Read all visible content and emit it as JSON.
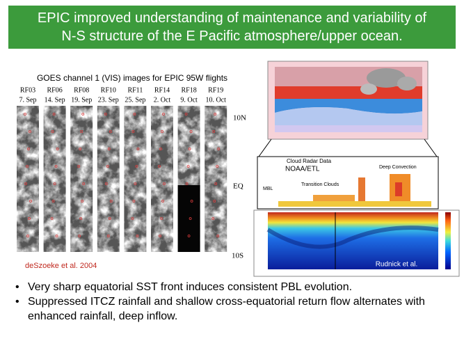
{
  "title": {
    "lines": [
      "EPIC improved understanding of maintenance and variability of",
      "N-S structure of the E Pacific atmosphere/upper ocean."
    ]
  },
  "left_panel": {
    "caption": "GOES channel 1 (VIS) images for EPIC 95W flights",
    "flights": [
      {
        "id": "RF03",
        "date": "7. Sep"
      },
      {
        "id": "RF06",
        "date": "14. Sep"
      },
      {
        "id": "RF08",
        "date": "19. Sep"
      },
      {
        "id": "RF10",
        "date": "23. Sep"
      },
      {
        "id": "RF11",
        "date": "25. Sep"
      },
      {
        "id": "RF14",
        "date": "2. Oct"
      },
      {
        "id": "RF18",
        "date": "9. Oct"
      },
      {
        "id": "RF19",
        "date": "10. Oct"
      }
    ],
    "latitudes": [
      "10N",
      "EQ",
      "10S"
    ],
    "credit": "deSzoeke et al. 2004"
  },
  "right_panel": {
    "radar_title": "Cloud Radar Data",
    "radar_source": "NOAA/ETL",
    "labels": [
      "Deep Convection",
      "Transition Clouds",
      "MBL"
    ],
    "credit": "Rudnick et al."
  },
  "bullets": [
    "Very sharp equatorial SST front induces consistent PBL evolution.",
    "Suppressed ITCZ rainfall and shallow cross-equatorial return flow alternates with enhanced rainfall, deep inflow."
  ]
}
